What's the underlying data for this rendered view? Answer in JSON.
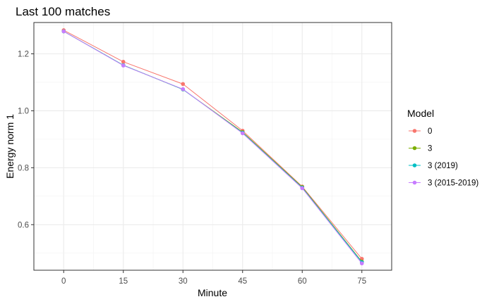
{
  "chart_data": {
    "type": "line",
    "title": "Last 100 matches",
    "xlabel": "Minute",
    "ylabel": "Energy norm 1",
    "x": [
      0,
      15,
      30,
      45,
      60,
      75
    ],
    "xticks": [
      "0",
      "15",
      "30",
      "45",
      "60",
      "75"
    ],
    "yticks": [
      "0.6",
      "0.8",
      "1.0",
      "1.2"
    ],
    "xlim": [
      -7.5,
      82.5
    ],
    "ylim": [
      0.44,
      1.31
    ],
    "grid": true,
    "legend": {
      "title": "Model",
      "placement": "right"
    },
    "series": [
      {
        "name": "0",
        "color": "#F8766D",
        "values": [
          1.283,
          1.172,
          1.094,
          0.93,
          0.734,
          0.48
        ]
      },
      {
        "name": "3",
        "color": "#7CAE00",
        "values": [
          1.279,
          1.16,
          1.075,
          0.925,
          0.732,
          0.47
        ]
      },
      {
        "name": "3 (2019)",
        "color": "#00BFC4",
        "values": [
          1.279,
          1.16,
          1.075,
          0.923,
          0.73,
          0.468
        ]
      },
      {
        "name": "3 (2015-2019)",
        "color": "#C77CFF",
        "values": [
          1.279,
          1.159,
          1.076,
          0.921,
          0.728,
          0.464
        ]
      }
    ]
  }
}
